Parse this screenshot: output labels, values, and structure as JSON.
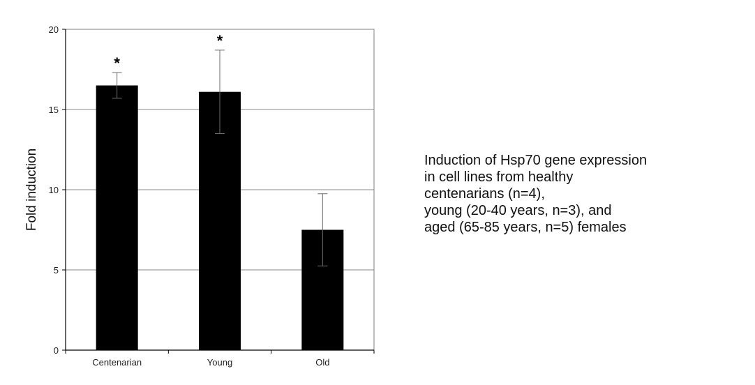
{
  "chart_data": {
    "type": "bar",
    "categories": [
      "Centenarian",
      "Young",
      "Old"
    ],
    "values": [
      16.5,
      16.1,
      7.5
    ],
    "error": [
      0.8,
      2.6,
      2.25
    ],
    "significance": [
      "*",
      "*",
      ""
    ],
    "xlabel": "",
    "ylabel": "Fold induction",
    "ylim": [
      0,
      20
    ],
    "yticks": [
      "0",
      "5",
      "10",
      "15",
      "20"
    ],
    "grid": true,
    "bar_color": "#000000"
  },
  "caption": {
    "lines": [
      "Induction of Hsp70 gene expression",
      "in cell lines from healthy",
      "centenarians (n=4),",
      "young (20-40 years, n=3), and",
      "aged (65-85 years, n=5) females"
    ]
  }
}
